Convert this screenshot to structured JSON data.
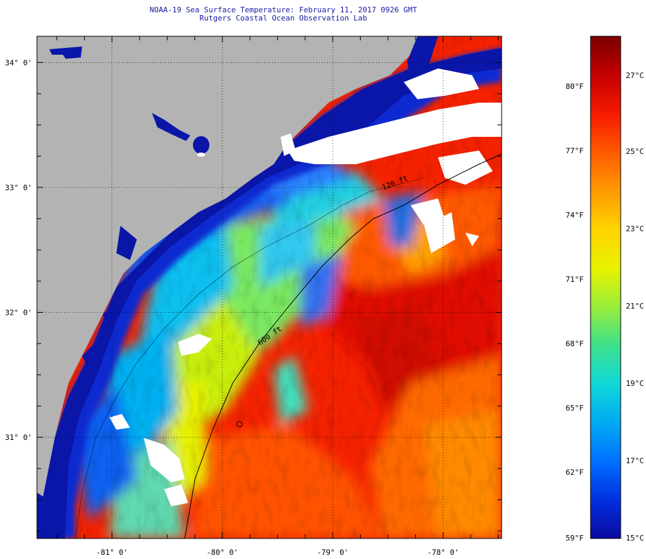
{
  "header": {
    "title": "NOAA-19 Sea Surface Temperature:  February 11, 2017 0926 GMT",
    "subtitle": "Rutgers Coastal Ocean Observation Lab"
  },
  "map": {
    "lon_range": [
      -81.68,
      -77.47
    ],
    "lat_range": [
      30.19,
      34.21
    ],
    "lon_ticks": [
      {
        "value": -81,
        "label": "-81° 0'"
      },
      {
        "value": -80,
        "label": "-80° 0'"
      },
      {
        "value": -79,
        "label": "-79° 0'"
      },
      {
        "value": -78,
        "label": "-78° 0'"
      }
    ],
    "lat_ticks": [
      {
        "value": 34,
        "label": "34° 0'"
      },
      {
        "value": 33,
        "label": "33° 0'"
      },
      {
        "value": 32,
        "label": "32° 0'"
      },
      {
        "value": 31,
        "label": "31° 0'"
      }
    ],
    "isobaths": [
      {
        "label": "120 ft",
        "value_ft": 120
      },
      {
        "label": "600 ft",
        "value_ft": 600
      }
    ],
    "colors": {
      "land": "#b3b3b3",
      "cloud": "#ffffff",
      "frame": "#000000",
      "grid": "#000000"
    }
  },
  "colorbar": {
    "f_labels": [
      "80°F",
      "77°F",
      "74°F",
      "71°F",
      "68°F",
      "65°F",
      "62°F",
      "59°F"
    ],
    "c_labels": [
      "27°C",
      "25°C",
      "23°C",
      "21°C",
      "19°C",
      "17°C",
      "15°C"
    ],
    "colors": [
      "#7a0000",
      "#c40000",
      "#f51a00",
      "#ff5a00",
      "#ff9a00",
      "#ffd400",
      "#e8f200",
      "#9aee3a",
      "#3ee08a",
      "#10d8d8",
      "#00aaf0",
      "#0070ff",
      "#0030e0",
      "#0a0aa0"
    ]
  }
}
